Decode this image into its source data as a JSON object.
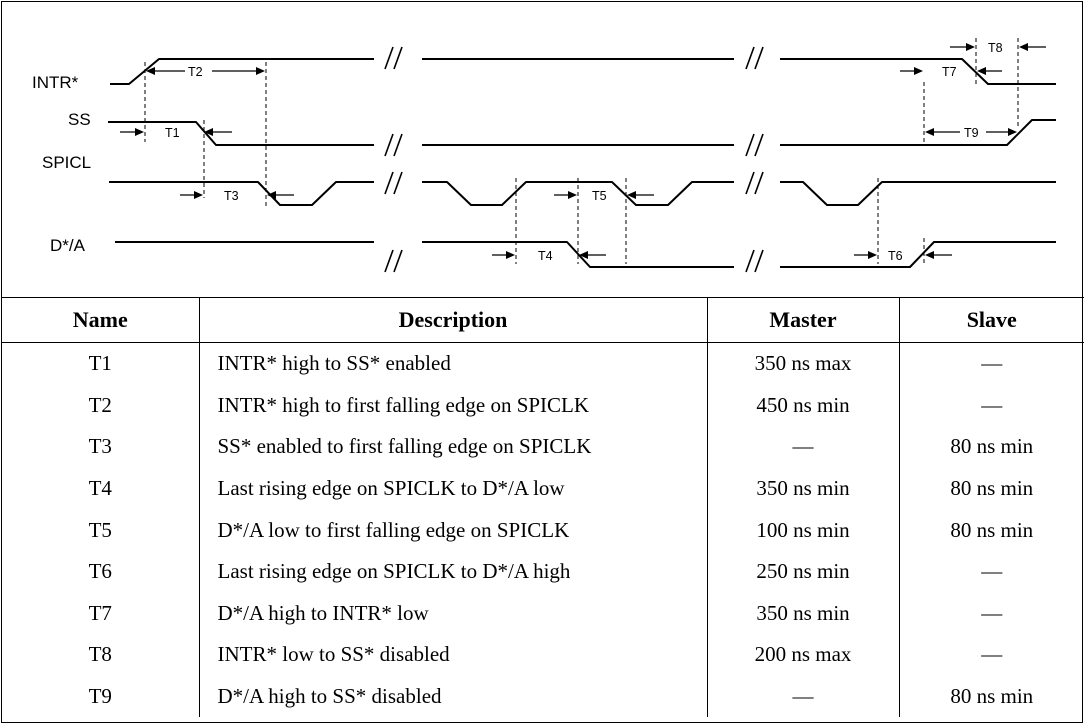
{
  "diagram": {
    "signals": [
      "INTR*",
      "SS",
      "SPICL",
      "D*/A"
    ],
    "timing_labels": [
      "T1",
      "T2",
      "T3",
      "T4",
      "T5",
      "T6",
      "T7",
      "T8",
      "T9"
    ]
  },
  "table": {
    "headers": {
      "name": "Name",
      "description": "Description",
      "master": "Master",
      "slave": "Slave"
    },
    "rows": [
      {
        "name": "T1",
        "description": "INTR* high to SS* enabled",
        "master": "350 ns max",
        "slave": "—"
      },
      {
        "name": "T2",
        "description": "INTR* high to first falling edge on SPICLK",
        "master": "450 ns min",
        "slave": "—"
      },
      {
        "name": "T3",
        "description": "SS* enabled to first falling edge on SPICLK",
        "master": "—",
        "slave": "80 ns min"
      },
      {
        "name": "T4",
        "description": "Last rising edge on SPICLK to D*/A low",
        "master": "350 ns min",
        "slave": "80 ns min"
      },
      {
        "name": "T5",
        "description": "D*/A low to first falling edge on SPICLK",
        "master": "100 ns min",
        "slave": "80 ns min"
      },
      {
        "name": "T6",
        "description": "Last rising edge on SPICLK to D*/A high",
        "master": "250 ns min",
        "slave": "—"
      },
      {
        "name": "T7",
        "description": "D*/A high to INTR* low",
        "master": "350 ns min",
        "slave": "—"
      },
      {
        "name": "T8",
        "description": "INTR* low to SS* disabled",
        "master": "200 ns max",
        "slave": "—"
      },
      {
        "name": "T9",
        "description": "D*/A high to SS* disabled",
        "master": "—",
        "slave": "80 ns min"
      }
    ]
  }
}
